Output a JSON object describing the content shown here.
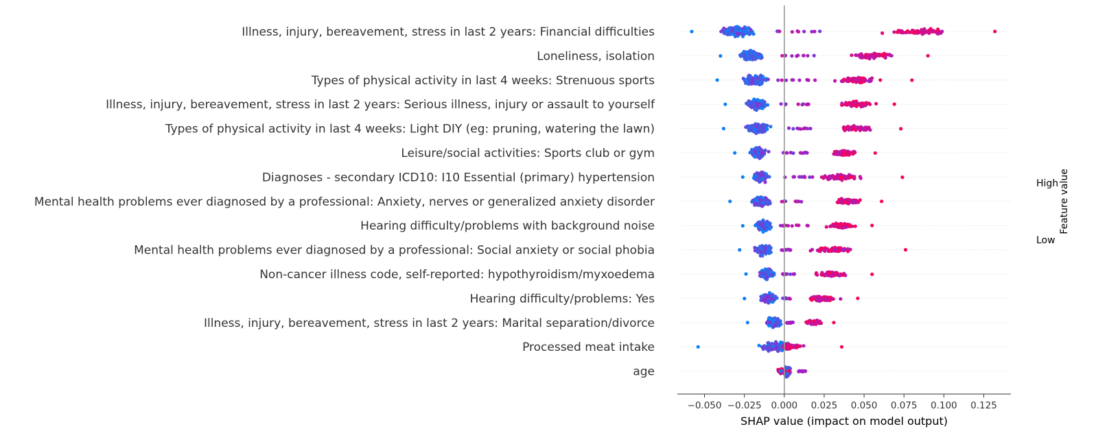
{
  "chart_data": {
    "type": "scatter",
    "subtype": "shap-beeswarm",
    "xlabel": "SHAP value (impact on model output)",
    "xticks": [
      -0.05,
      -0.025,
      0.0,
      0.025,
      0.05,
      0.075,
      0.1,
      0.125
    ],
    "xtick_labels": [
      "−0.050",
      "−0.025",
      "0.000",
      "0.025",
      "0.050",
      "0.075",
      "0.100",
      "0.125"
    ],
    "xlim": [
      -0.067,
      0.142
    ],
    "colorbar": {
      "label": "Feature value",
      "high_label": "High",
      "low_label": "Low",
      "low_color": "#008bfb",
      "high_color": "#ff0052"
    },
    "grid": false,
    "features": [
      {
        "name": "Illness, injury, bereavement, stress in last 2 years: Financial difficulties",
        "low_cluster": {
          "center": -0.029,
          "min": -0.058,
          "max": -0.01
        },
        "high_cluster": {
          "min": 0.025,
          "max": 0.132,
          "center": 0.085
        }
      },
      {
        "name": "Loneliness, isolation",
        "low_cluster": {
          "center": -0.021,
          "min": -0.04,
          "max": -0.004
        },
        "high_cluster": {
          "min": 0.02,
          "max": 0.09,
          "center": 0.055
        }
      },
      {
        "name": "Types of physical activity in last 4 weeks: Strenuous sports",
        "low_cluster": {
          "center": -0.018,
          "min": -0.042,
          "max": -0.004
        },
        "high_cluster": {
          "min": 0.02,
          "max": 0.08,
          "center": 0.045
        }
      },
      {
        "name": "Illness, injury, bereavement, stress in last 2 years: Serious illness, injury or assault to yourself",
        "low_cluster": {
          "center": -0.017,
          "min": -0.037,
          "max": -0.003
        },
        "high_cluster": {
          "min": 0.018,
          "max": 0.069,
          "center": 0.045
        }
      },
      {
        "name": "Types of physical activity in last 4 weeks: Light DIY (eg: pruning, watering the lawn)",
        "low_cluster": {
          "center": -0.017,
          "min": -0.038,
          "max": 0.0
        },
        "high_cluster": {
          "min": 0.018,
          "max": 0.073,
          "center": 0.045
        }
      },
      {
        "name": "Leisure/social activities: Sports club or gym",
        "low_cluster": {
          "center": -0.016,
          "min": -0.031,
          "max": -0.002
        },
        "high_cluster": {
          "min": 0.018,
          "max": 0.057,
          "center": 0.038
        }
      },
      {
        "name": "Diagnoses - secondary ICD10: I10 Essential (primary) hypertension",
        "low_cluster": {
          "center": -0.015,
          "min": -0.026,
          "max": -0.003
        },
        "high_cluster": {
          "min": 0.018,
          "max": 0.074,
          "center": 0.035
        }
      },
      {
        "name": "Mental health problems ever diagnosed by a professional: Anxiety, nerves or generalized anxiety disorder",
        "low_cluster": {
          "center": -0.014,
          "min": -0.034,
          "max": -0.002
        },
        "high_cluster": {
          "min": 0.012,
          "max": 0.061,
          "center": 0.04
        }
      },
      {
        "name": "Hearing difficulty/problems with background noise",
        "low_cluster": {
          "center": -0.013,
          "min": -0.026,
          "max": -0.003
        },
        "high_cluster": {
          "min": 0.015,
          "max": 0.055,
          "center": 0.035
        }
      },
      {
        "name": "Mental health problems ever diagnosed by a professional: Social anxiety or social phobia",
        "low_cluster": {
          "center": -0.013,
          "min": -0.028,
          "max": -0.003
        },
        "high_cluster": {
          "min": 0.005,
          "max": 0.076,
          "center": 0.03
        }
      },
      {
        "name": "Non-cancer illness code, self-reported: hypothyroidism/myxoedema",
        "low_cluster": {
          "center": -0.011,
          "min": -0.024,
          "max": -0.001
        },
        "high_cluster": {
          "min": 0.008,
          "max": 0.055,
          "center": 0.03
        }
      },
      {
        "name": "Hearing difficulty/problems: Yes",
        "low_cluster": {
          "center": -0.01,
          "min": -0.025,
          "max": -0.001
        },
        "high_cluster": {
          "min": 0.005,
          "max": 0.046,
          "center": 0.025
        }
      },
      {
        "name": "Illness, injury, bereavement, stress in last 2 years: Marital separation/divorce",
        "low_cluster": {
          "center": -0.007,
          "min": -0.023,
          "max": 0.001
        },
        "high_cluster": {
          "min": 0.005,
          "max": 0.031,
          "center": 0.018
        }
      },
      {
        "name": "Processed meat intake",
        "low_cluster": {
          "center": -0.004,
          "min": -0.054,
          "max": 0.002
        },
        "high_cluster": {
          "min": 0.0,
          "max": 0.036,
          "center": 0.003
        }
      },
      {
        "name": "age",
        "low_cluster": {
          "center": 0.002,
          "min": -0.002,
          "max": 0.009
        },
        "high_cluster": {
          "min": -0.007,
          "max": 0.003,
          "center": -0.002
        }
      }
    ]
  }
}
